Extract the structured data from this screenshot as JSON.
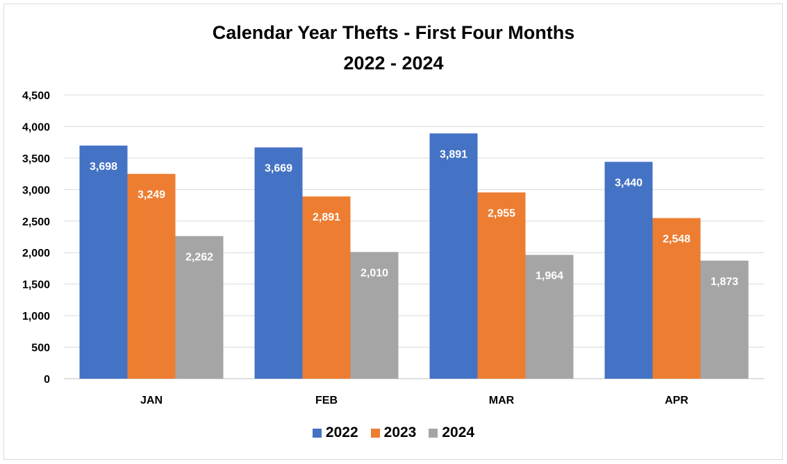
{
  "chart_data": {
    "type": "bar",
    "title": "Calendar Year Thefts - First Four Months",
    "subtitle": "2022 - 2024",
    "categories": [
      "JAN",
      "FEB",
      "MAR",
      "APR"
    ],
    "series": [
      {
        "name": "2022",
        "color": "#4472c4",
        "values": [
          3698,
          3669,
          3891,
          3440
        ]
      },
      {
        "name": "2023",
        "color": "#ed7d31",
        "values": [
          3249,
          2891,
          2955,
          2548
        ]
      },
      {
        "name": "2024",
        "color": "#a5a5a5",
        "values": [
          2262,
          2010,
          1964,
          1873
        ]
      }
    ],
    "ylim": [
      0,
      4500
    ],
    "yticks": [
      0,
      500,
      1000,
      1500,
      2000,
      2500,
      3000,
      3500,
      4000,
      4500
    ],
    "ytick_labels": [
      "0",
      "500",
      "1,000",
      "1,500",
      "2,000",
      "2,500",
      "3,000",
      "3,500",
      "4,000",
      "4,500"
    ],
    "data_labels": [
      [
        "3,698",
        "3,669",
        "3,891",
        "3,440"
      ],
      [
        "3,249",
        "2,891",
        "2,955",
        "2,548"
      ],
      [
        "2,262",
        "2,010",
        "1,964",
        "1,873"
      ]
    ],
    "grid": true,
    "legend_position": "bottom"
  }
}
